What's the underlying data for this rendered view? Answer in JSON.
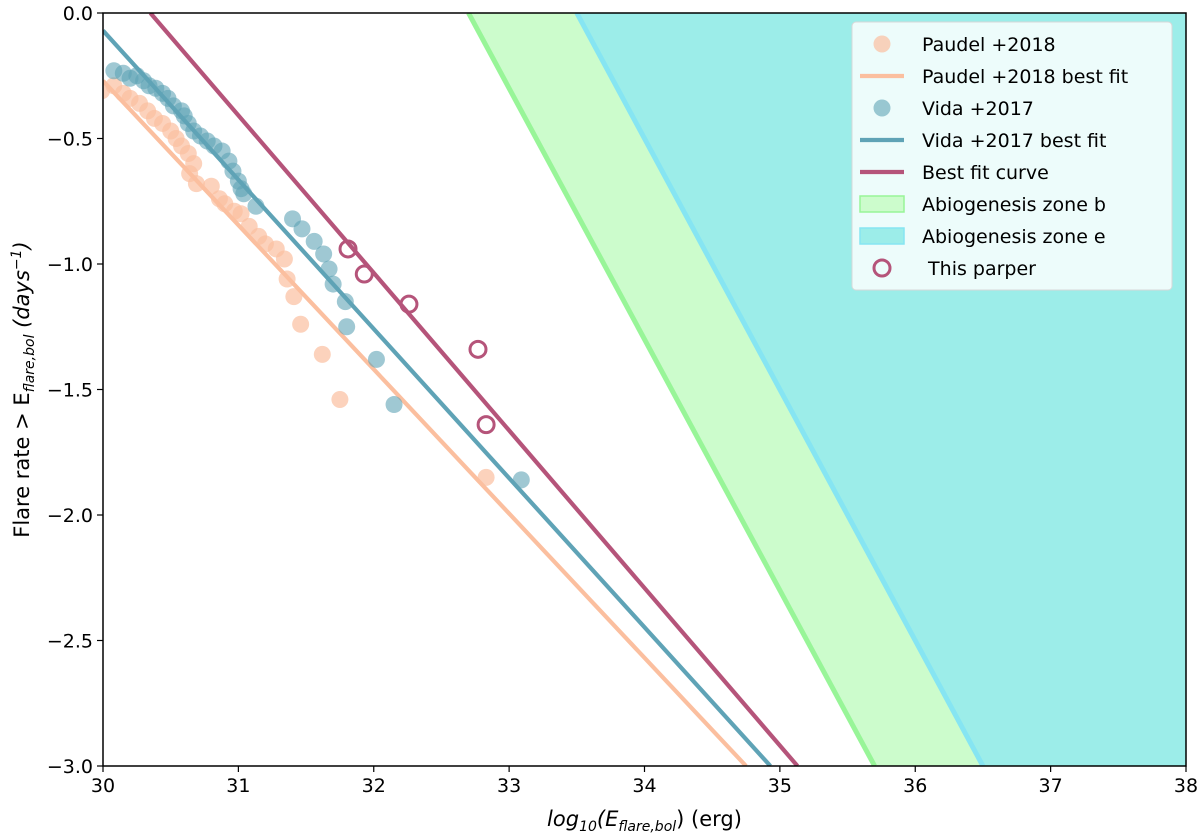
{
  "chart_data": {
    "type": "scatter",
    "title": "",
    "xlabel": {
      "main": "log",
      "sub": "10",
      "open": "(E",
      "esub": "flare,bol",
      "close": ") (erg)"
    },
    "ylabel": {
      "prefix": "Flare rate > E",
      "esub": "flare,bol",
      "unit_open": " (days",
      "sup": "−1",
      "unit_close": ")"
    },
    "xlim": [
      30,
      38
    ],
    "ylim": [
      -3.0,
      0.0
    ],
    "xticks": [
      30,
      31,
      32,
      33,
      34,
      35,
      36,
      37,
      38
    ],
    "yticks": [
      0.0,
      -0.5,
      -1.0,
      -1.5,
      -2.0,
      -2.5,
      -3.0
    ],
    "xtick_labels": [
      "30",
      "31",
      "32",
      "33",
      "34",
      "35",
      "36",
      "37",
      "38"
    ],
    "ytick_labels": [
      "0.0",
      "−0.5",
      "−1.0",
      "−1.5",
      "−2.0",
      "−2.5",
      "−3.0"
    ],
    "grid": false,
    "legend_position": "top-right",
    "colors": {
      "paudel": "#fbbf9f",
      "vida": "#5fa3b6",
      "best": "#b5547a",
      "zone_b_fill": "#ccfccc",
      "zone_b_edge": "#98f598",
      "zone_e_fill": "#9cede9",
      "zone_e_edge": "#86e5f2"
    },
    "series": [
      {
        "name": "Paudel +2018",
        "kind": "scatter",
        "points": [
          [
            29.99,
            -0.31
          ],
          [
            30.08,
            -0.29
          ],
          [
            30.15,
            -0.32
          ],
          [
            30.2,
            -0.34
          ],
          [
            30.27,
            -0.36
          ],
          [
            30.33,
            -0.39
          ],
          [
            30.38,
            -0.42
          ],
          [
            30.44,
            -0.44
          ],
          [
            30.5,
            -0.47
          ],
          [
            30.54,
            -0.5
          ],
          [
            30.58,
            -0.53
          ],
          [
            30.63,
            -0.56
          ],
          [
            30.67,
            -0.6
          ],
          [
            30.64,
            -0.64
          ],
          [
            30.69,
            -0.68
          ],
          [
            30.8,
            -0.69
          ],
          [
            30.86,
            -0.74
          ],
          [
            30.9,
            -0.76
          ],
          [
            30.97,
            -0.79
          ],
          [
            31.02,
            -0.8
          ],
          [
            31.08,
            -0.85
          ],
          [
            31.15,
            -0.89
          ],
          [
            31.2,
            -0.92
          ],
          [
            31.28,
            -0.94
          ],
          [
            31.34,
            -0.98
          ],
          [
            31.36,
            -1.06
          ],
          [
            31.41,
            -1.13
          ],
          [
            31.46,
            -1.24
          ],
          [
            31.62,
            -1.36
          ],
          [
            31.75,
            -1.54
          ],
          [
            32.83,
            -1.85
          ]
        ]
      },
      {
        "name": "Paudel +2018 best fit",
        "kind": "line",
        "points": [
          [
            30.0,
            -0.27
          ],
          [
            34.75,
            -3.0
          ]
        ]
      },
      {
        "name": "Vida +2017",
        "kind": "scatter",
        "points": [
          [
            30.08,
            -0.23
          ],
          [
            30.15,
            -0.24
          ],
          [
            30.2,
            -0.26
          ],
          [
            30.25,
            -0.25
          ],
          [
            30.3,
            -0.27
          ],
          [
            30.34,
            -0.29
          ],
          [
            30.39,
            -0.3
          ],
          [
            30.44,
            -0.32
          ],
          [
            30.48,
            -0.34
          ],
          [
            30.52,
            -0.37
          ],
          [
            30.58,
            -0.39
          ],
          [
            30.6,
            -0.41
          ],
          [
            30.63,
            -0.44
          ],
          [
            30.67,
            -0.47
          ],
          [
            30.72,
            -0.49
          ],
          [
            30.77,
            -0.51
          ],
          [
            30.82,
            -0.53
          ],
          [
            30.88,
            -0.55
          ],
          [
            30.93,
            -0.59
          ],
          [
            30.96,
            -0.63
          ],
          [
            31.0,
            -0.67
          ],
          [
            31.02,
            -0.7
          ],
          [
            31.04,
            -0.72
          ],
          [
            31.13,
            -0.77
          ],
          [
            31.4,
            -0.82
          ],
          [
            31.47,
            -0.86
          ],
          [
            31.56,
            -0.91
          ],
          [
            31.63,
            -0.96
          ],
          [
            31.67,
            -1.02
          ],
          [
            31.7,
            -1.08
          ],
          [
            31.79,
            -1.15
          ],
          [
            31.8,
            -1.25
          ],
          [
            32.02,
            -1.38
          ],
          [
            32.15,
            -1.56
          ],
          [
            33.09,
            -1.86
          ]
        ]
      },
      {
        "name": "Vida +2017 best fit",
        "kind": "line",
        "points": [
          [
            30.0,
            -0.07
          ],
          [
            34.93,
            -3.0
          ]
        ]
      },
      {
        "name": "Best fit curve",
        "kind": "line",
        "points": [
          [
            30.35,
            0.0
          ],
          [
            35.13,
            -3.0
          ]
        ]
      },
      {
        "name": "Abiogenesis zone b",
        "kind": "band",
        "polygon": [
          [
            32.7,
            0.0
          ],
          [
            33.5,
            0.0
          ],
          [
            36.5,
            -3.0
          ],
          [
            35.7,
            -3.0
          ]
        ]
      },
      {
        "name": "Abiogenesis zone e",
        "kind": "band",
        "polygon": [
          [
            33.5,
            0.0
          ],
          [
            38.0,
            0.0
          ],
          [
            38.0,
            -3.0
          ],
          [
            36.5,
            -3.0
          ]
        ]
      },
      {
        "name": "This parper",
        "kind": "scatter",
        "points": [
          [
            31.81,
            -0.94
          ],
          [
            31.93,
            -1.04
          ],
          [
            32.26,
            -1.16
          ],
          [
            32.77,
            -1.34
          ],
          [
            32.83,
            -1.64
          ]
        ]
      }
    ],
    "legend": [
      {
        "key": "paudel-scatter",
        "label": "Paudel +2018",
        "kind": "marker"
      },
      {
        "key": "paudel-fit",
        "label": "Paudel +2018 best fit",
        "kind": "line"
      },
      {
        "key": "vida-scatter",
        "label": "Vida +2017",
        "kind": "marker"
      },
      {
        "key": "vida-fit",
        "label": "Vida +2017 best fit",
        "kind": "line"
      },
      {
        "key": "best-fit",
        "label": "Best fit curve",
        "kind": "line"
      },
      {
        "key": "zone-b",
        "label": "Abiogenesis zone b",
        "kind": "patch"
      },
      {
        "key": "zone-e",
        "label": "Abiogenesis zone e",
        "kind": "patch"
      },
      {
        "key": "this-paper",
        "label": " This parper",
        "kind": "hollow"
      }
    ]
  }
}
